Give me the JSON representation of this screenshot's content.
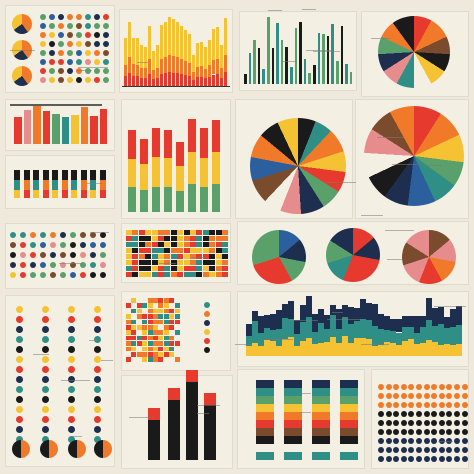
{
  "palette": {
    "red": "#e63a2e",
    "orange": "#f07a2a",
    "yellow": "#f4c232",
    "teal": "#2f8f87",
    "green": "#5aa06a",
    "blue": "#2c5f9e",
    "navy": "#1e2e4f",
    "black": "#1a1a1a",
    "cream": "#f4efe3",
    "grey": "#8b8b8b",
    "pink": "#e78c8c",
    "brown": "#7b4b2e"
  }
}
